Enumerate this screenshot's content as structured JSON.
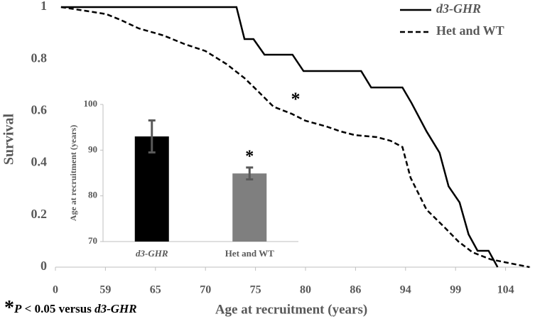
{
  "chart_data": [
    {
      "type": "line",
      "xlabel": "Age at recruitment (years)",
      "ylabel": "Survival",
      "xlim": [
        0,
        106.5
      ],
      "xticks": [
        0,
        59,
        65,
        70,
        75,
        80,
        86,
        94,
        99,
        104
      ],
      "ylim": [
        0,
        1
      ],
      "yticks": [
        0,
        0.2,
        0.4,
        0.6,
        0.8,
        1
      ],
      "series": [
        {
          "name": "d3-GHR",
          "color": "#000000",
          "dash": "solid",
          "x": [
            6.6,
            73.1,
            73.9,
            74.8,
            75.9,
            78.7,
            79.8,
            86.9,
            88.5,
            93.5,
            94.6,
            96.1,
            97.4,
            98.3,
            99.4,
            100.3,
            101.2,
            102.3,
            103.2
          ],
          "values": [
            1,
            1,
            0.877,
            0.877,
            0.817,
            0.817,
            0.754,
            0.754,
            0.691,
            0.691,
            0.631,
            0.522,
            0.44,
            0.311,
            0.249,
            0.126,
            0.063,
            0.063,
            0
          ]
        },
        {
          "name": "Het and WT",
          "color": "#000000",
          "dash": "dashed",
          "x": [
            6.6,
            34.9,
            59.1,
            60.8,
            63.0,
            65.8,
            67.9,
            70,
            72.1,
            73.9,
            75,
            76.8,
            78.6,
            80,
            82.5,
            84.2,
            85.9,
            89.4,
            91.6,
            93.5,
            94.5,
            96.1,
            97.9,
            99.3,
            100.7,
            102.5,
            104.3,
            106.4
          ],
          "values": [
            1,
            0.986,
            0.973,
            0.951,
            0.918,
            0.891,
            0.858,
            0.831,
            0.781,
            0.727,
            0.686,
            0.617,
            0.59,
            0.563,
            0.541,
            0.522,
            0.508,
            0.5,
            0.486,
            0.462,
            0.344,
            0.221,
            0.153,
            0.098,
            0.057,
            0.03,
            0.016,
            0
          ]
        }
      ],
      "legend": "top-right",
      "annotations": [
        "*"
      ],
      "footnote": [
        "*",
        "P",
        " < 0.05 versus ",
        "d3-GHR"
      ]
    },
    {
      "type": "bar",
      "ylabel": "Age at recruitment (years)",
      "categories": [
        "d3-GHR",
        "Het and WT"
      ],
      "values": [
        93,
        84.9
      ],
      "errors": [
        3.5,
        1.3
      ],
      "colors": [
        "#000000",
        "#7f7f7f"
      ],
      "error_color": "#595959",
      "ylim": [
        70,
        100
      ],
      "yticks": [
        70,
        80,
        90,
        100
      ],
      "annotations": [
        "*"
      ]
    }
  ]
}
